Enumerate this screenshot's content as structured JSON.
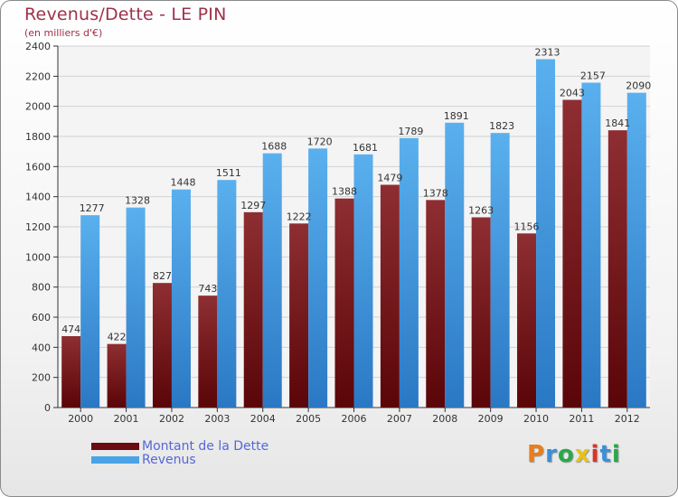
{
  "header": {
    "title": "Revenus/Dette - LE PIN",
    "subtitle": "(en milliers d'€)"
  },
  "logo": {
    "text": "Proxiti",
    "letters": [
      {
        "char": "P",
        "color": "#e87e1c"
      },
      {
        "char": "r",
        "color": "#3a8fd8"
      },
      {
        "char": "o",
        "color": "#2aa84a"
      },
      {
        "char": "x",
        "color": "#e8c21c"
      },
      {
        "char": "i",
        "color": "#d8362a"
      },
      {
        "char": "t",
        "color": "#3a8fd8"
      },
      {
        "char": "i",
        "color": "#2aa84a"
      }
    ]
  },
  "chart_data": {
    "type": "bar",
    "title": "Revenus/Dette - LE PIN",
    "subtitle": "(en milliers d'€)",
    "xlabel": "",
    "ylabel": "",
    "ylim": [
      0,
      2400
    ],
    "yticks": [
      0,
      200,
      400,
      600,
      800,
      1000,
      1200,
      1400,
      1600,
      1800,
      2000,
      2200,
      2400
    ],
    "grid": true,
    "legend_position": "bottom-left",
    "categories": [
      "2000",
      "2001",
      "2002",
      "2003",
      "2004",
      "2005",
      "2006",
      "2007",
      "2008",
      "2009",
      "2010",
      "2011",
      "2012"
    ],
    "series": [
      {
        "name": "Montant de la Dette",
        "color": "#7a1418",
        "values": [
          474,
          422,
          827,
          743,
          1297,
          1222,
          1388,
          1479,
          1378,
          1263,
          1156,
          2043,
          1841
        ],
        "labels": [
          "474",
          "422",
          "827",
          "743",
          "1297",
          "1222",
          "1388",
          "1479",
          "1378",
          "1263",
          "1156",
          "2043",
          "1841"
        ]
      },
      {
        "name": "Revenus",
        "color": "#4aa3e6",
        "values": [
          1277,
          1328,
          1448,
          1511,
          1688,
          1720,
          1681,
          1789,
          1891,
          1823,
          2313,
          2157,
          2090
        ],
        "labels": [
          "1277",
          "1328",
          "1448",
          "1511",
          "1688",
          "1720",
          "1681",
          "1789",
          "1891",
          "1823",
          "2313",
          "2157",
          "2090"
        ]
      }
    ]
  }
}
